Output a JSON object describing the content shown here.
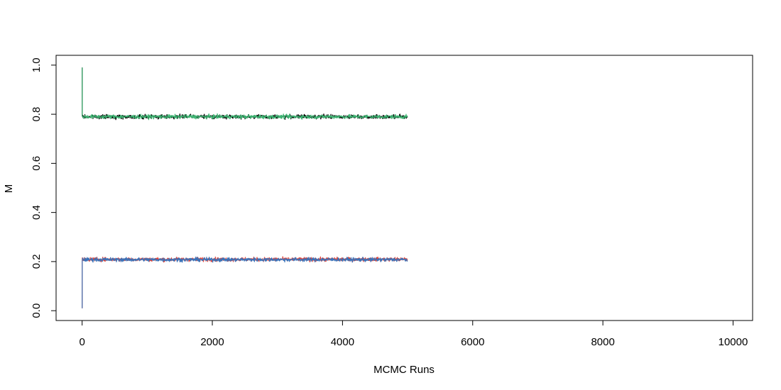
{
  "chart_data": {
    "type": "line",
    "title": "",
    "xlabel": "MCMC Runs",
    "ylabel": "M",
    "xlim": [
      -400,
      10300
    ],
    "ylim": [
      -0.04,
      1.04
    ],
    "xticks": [
      0,
      2000,
      4000,
      6000,
      8000,
      10000
    ],
    "xtick_labels": [
      "0",
      "2000",
      "4000",
      "6000",
      "8000",
      "10000"
    ],
    "yticks": [
      0.0,
      0.2,
      0.4,
      0.6,
      0.8,
      1.0
    ],
    "ytick_labels": [
      "0.0",
      "0.2",
      "0.4",
      "0.6",
      "0.8",
      "1.0"
    ],
    "grid": false,
    "legend": "none",
    "n_iterations": 5000,
    "series": [
      {
        "color": "#000000",
        "start": 0.99,
        "mean": 0.79,
        "noise": 0.004
      },
      {
        "color": "#3cb371",
        "start": 0.99,
        "mean": 0.79,
        "noise": 0.004
      },
      {
        "color": "#e0443a",
        "start": 0.01,
        "mean": 0.209,
        "noise": 0.004
      },
      {
        "color": "#3b73b9",
        "start": 0.01,
        "mean": 0.208,
        "noise": 0.004
      }
    ]
  }
}
